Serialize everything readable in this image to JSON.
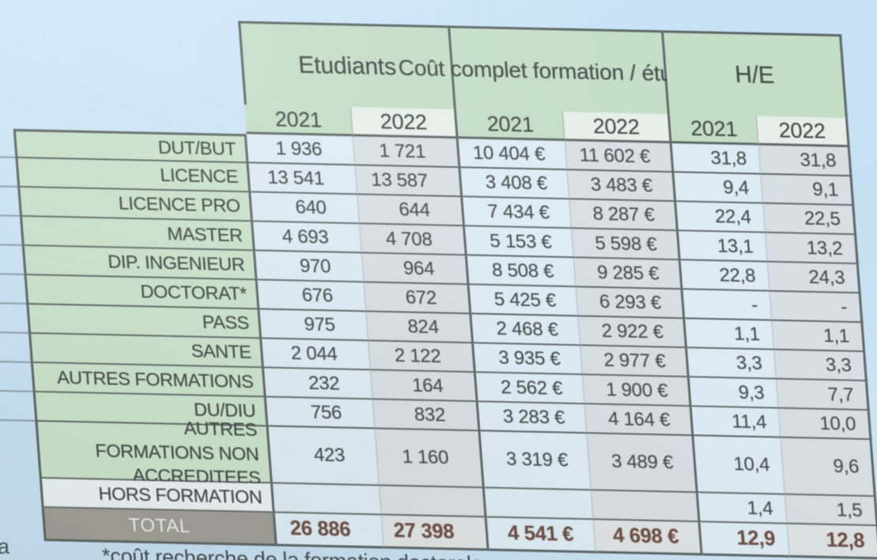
{
  "chart_data": {
    "type": "table",
    "column_groups": [
      {
        "label": "Etudiants",
        "years": [
          "2021",
          "2022"
        ]
      },
      {
        "label": "Coût complet formation / étudiant",
        "years": [
          "2021",
          "2022"
        ]
      },
      {
        "label": "H/E",
        "years": [
          "2021",
          "2022"
        ]
      }
    ],
    "columns": [
      "Etudiants 2021",
      "Etudiants 2022",
      "Coût complet formation / étudiant 2021",
      "Coût complet formation / étudiant 2022",
      "H/E 2021",
      "H/E 2022"
    ],
    "rows": [
      {
        "label": "DUT/BUT",
        "cells": [
          "1 936",
          "1 721",
          "10 404 €",
          "11 602 €",
          "31,8",
          "31,8"
        ]
      },
      {
        "label": "LICENCE",
        "cells": [
          "13 541",
          "13 587",
          "3 408 €",
          "3 483 €",
          "9,4",
          "9,1"
        ]
      },
      {
        "label": "LICENCE PRO",
        "cells": [
          "640",
          "644",
          "7 434 €",
          "8 287 €",
          "22,4",
          "22,5"
        ]
      },
      {
        "label": "MASTER",
        "cells": [
          "4 693",
          "4 708",
          "5 153 €",
          "5 598 €",
          "13,1",
          "13,2"
        ]
      },
      {
        "label": "DIP. INGENIEUR",
        "cells": [
          "970",
          "964",
          "8 508 €",
          "9 285 €",
          "22,8",
          "24,3"
        ]
      },
      {
        "label": "DOCTORAT*",
        "cells": [
          "676",
          "672",
          "5 425 €",
          "6 293 €",
          "-",
          "-"
        ]
      },
      {
        "label": "PASS",
        "cells": [
          "975",
          "824",
          "2 468 €",
          "2 922 €",
          "1,1",
          "1,1"
        ]
      },
      {
        "label": "SANTE",
        "cells": [
          "2 044",
          "2 122",
          "3 935 €",
          "2 977 €",
          "3,3",
          "3,3"
        ]
      },
      {
        "label": "AUTRES FORMATIONS",
        "cells": [
          "232",
          "164",
          "2 562 €",
          "1 900 €",
          "9,3",
          "7,7"
        ]
      },
      {
        "label": "DU/DIU",
        "cells": [
          "756",
          "832",
          "3 283 €",
          "4 164 €",
          "11,4",
          "10,0"
        ]
      },
      {
        "label": "AUTRES FORMATIONS NON ACCREDITEES",
        "cells": [
          "423",
          "1 160",
          "3 319 €",
          "3 489 €",
          "10,4",
          "9,6"
        ]
      },
      {
        "label": "HORS FORMATION",
        "cells": [
          "",
          "",
          "",
          "",
          "1,4",
          "1,5"
        ]
      }
    ],
    "total_row": {
      "label": "TOTAL",
      "cells": [
        "26 886",
        "27 398",
        "4 541 €",
        "4 698 €",
        "12,9",
        "12,8"
      ]
    },
    "footnote": "*coût recherche de la formation doctorale"
  },
  "edge_fragment": "a",
  "colors": {
    "background": "#c6e2f6",
    "header_green": "#c2ddc4",
    "label_green": "#c8e2ca",
    "cell_2021": "#dcebf5",
    "cell_2022": "#d7dee3",
    "year_2022_header": "#e7eee9",
    "border": "#576060",
    "total_label_bg": "#9b9c94",
    "total_value_text": "#6b4a3d",
    "text": "#424a4b"
  }
}
